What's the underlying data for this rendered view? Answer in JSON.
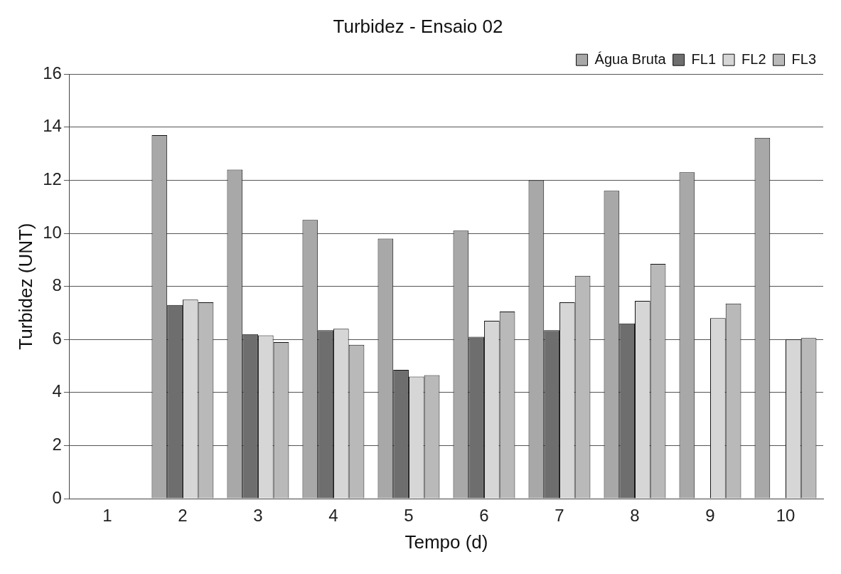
{
  "chart_data": {
    "type": "bar",
    "title": "Turbidez - Ensaio 02",
    "xlabel": "Tempo (d)",
    "ylabel": "Turbidez (UNT)",
    "categories": [
      "1",
      "2",
      "3",
      "4",
      "5",
      "6",
      "7",
      "8",
      "9",
      "10"
    ],
    "series": [
      {
        "name": "Água Bruta",
        "color": "#a8a8a8",
        "values": [
          null,
          13.7,
          12.4,
          10.5,
          9.8,
          10.1,
          12.0,
          11.6,
          12.3,
          13.6
        ]
      },
      {
        "name": "FL1",
        "color": "#6e6e6e",
        "values": [
          null,
          7.3,
          6.2,
          6.35,
          4.85,
          6.1,
          6.35,
          6.6,
          null,
          null
        ]
      },
      {
        "name": "FL2",
        "color": "#d6d6d6",
        "values": [
          null,
          7.5,
          6.15,
          6.4,
          4.6,
          6.7,
          7.4,
          7.45,
          6.8,
          6.0
        ]
      },
      {
        "name": "FL3",
        "color": "#b9b9b9",
        "values": [
          null,
          7.4,
          5.9,
          5.8,
          4.65,
          7.05,
          8.4,
          8.85,
          7.35,
          6.05
        ]
      }
    ],
    "ylim": [
      0,
      16
    ],
    "yticks": [
      0,
      2,
      4,
      6,
      8,
      10,
      12,
      14,
      16
    ],
    "grid": "y",
    "legend": "top right"
  }
}
